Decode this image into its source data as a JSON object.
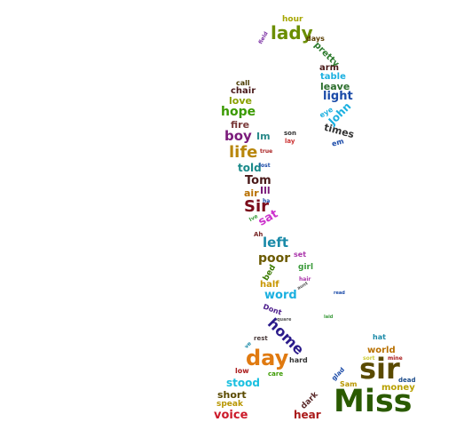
{
  "words": [
    {
      "id": "lady",
      "text": "lady",
      "color": "#6b8e00"
    },
    {
      "id": "hour",
      "text": "hour",
      "color": "#a6a600"
    },
    {
      "id": "days",
      "text": "days",
      "color": "#5a3d00"
    },
    {
      "id": "field",
      "text": "field",
      "color": "#7a2ea3"
    },
    {
      "id": "pretty",
      "text": "pretty",
      "color": "#2c7a2c"
    },
    {
      "id": "arm",
      "text": "arm",
      "color": "#4a1a1a"
    },
    {
      "id": "table",
      "text": "table",
      "color": "#1bb0e0"
    },
    {
      "id": "leave",
      "text": "leave",
      "color": "#2c6e2c"
    },
    {
      "id": "light",
      "text": "light",
      "color": "#1a4aa8"
    },
    {
      "id": "eye",
      "text": "eye",
      "color": "#1bb0e0"
    },
    {
      "id": "john",
      "text": "John",
      "color": "#1bb0e0"
    },
    {
      "id": "times",
      "text": "times",
      "color": "#333333"
    },
    {
      "id": "em",
      "text": "em",
      "color": "#1a4aa8"
    },
    {
      "id": "call",
      "text": "call",
      "color": "#4a3a00"
    },
    {
      "id": "chair",
      "text": "chair",
      "color": "#4a1a1a"
    },
    {
      "id": "love",
      "text": "love",
      "color": "#8aa000"
    },
    {
      "id": "hope",
      "text": "hope",
      "color": "#3a9a00"
    },
    {
      "id": "fire",
      "text": "fire",
      "color": "#7a3a3a"
    },
    {
      "id": "boy",
      "text": "boy",
      "color": "#7a1a7a"
    },
    {
      "id": "im",
      "text": "Im",
      "color": "#2a8a8a"
    },
    {
      "id": "son",
      "text": "son",
      "color": "#333333"
    },
    {
      "id": "lay",
      "text": "lay",
      "color": "#cc3333"
    },
    {
      "id": "life",
      "text": "life",
      "color": "#b8860b"
    },
    {
      "id": "true",
      "text": "true",
      "color": "#aa2222"
    },
    {
      "id": "told",
      "text": "told",
      "color": "#1a8a8a"
    },
    {
      "id": "lost",
      "text": "lost",
      "color": "#1a4aa8"
    },
    {
      "id": "tom",
      "text": "Tom",
      "color": "#4a1a1a"
    },
    {
      "id": "air",
      "text": "air",
      "color": "#b87000"
    },
    {
      "id": "ill",
      "text": "Ill",
      "color": "#7a1a7a"
    },
    {
      "id": "ha",
      "text": "ha",
      "color": "#1a4aa8"
    },
    {
      "id": "sir-caps",
      "text": "Sir",
      "color": "#7a0a1a"
    },
    {
      "id": "sat",
      "text": "sat",
      "color": "#cc33cc"
    },
    {
      "id": "ive",
      "text": "Ive",
      "color": "#3a9a3a"
    },
    {
      "id": "ah",
      "text": "Ah",
      "color": "#7a2a2a"
    },
    {
      "id": "left",
      "text": "left",
      "color": "#1a8aa8"
    },
    {
      "id": "set",
      "text": "set",
      "color": "#aa33aa"
    },
    {
      "id": "poor",
      "text": "poor",
      "color": "#6b5a00"
    },
    {
      "id": "bed",
      "text": "bed",
      "color": "#3a7a00"
    },
    {
      "id": "girl",
      "text": "girl",
      "color": "#3a9a3a"
    },
    {
      "id": "hair",
      "text": "hair",
      "color": "#aa33aa"
    },
    {
      "id": "half",
      "text": "half",
      "color": "#c89600"
    },
    {
      "id": "aunt",
      "text": "aunt",
      "color": "#555555"
    },
    {
      "id": "word",
      "text": "word",
      "color": "#1bb0e0"
    },
    {
      "id": "read",
      "text": "read",
      "color": "#1a4aa8"
    },
    {
      "id": "dont",
      "text": "Dont",
      "color": "#4a1a8a"
    },
    {
      "id": "square",
      "text": "square",
      "color": "#555555"
    },
    {
      "id": "laid",
      "text": "laid",
      "color": "#3a9a3a"
    },
    {
      "id": "home",
      "text": "home",
      "color": "#2a1a8a"
    },
    {
      "id": "rest",
      "text": "rest",
      "color": "#4a3a3a"
    },
    {
      "id": "ve",
      "text": "ve",
      "color": "#1a8aa8"
    },
    {
      "id": "day",
      "text": "day",
      "color": "#e07a10"
    },
    {
      "id": "hard",
      "text": "hard",
      "color": "#333333"
    },
    {
      "id": "hat",
      "text": "hat",
      "color": "#1a8aa8"
    },
    {
      "id": "world",
      "text": "world",
      "color": "#b87000"
    },
    {
      "id": "sort",
      "text": "sort",
      "color": "#cccc33"
    },
    {
      "id": "mine",
      "text": "mine",
      "color": "#aa1a1a"
    },
    {
      "id": "sir",
      "text": "sir",
      "color": "#5a4a00"
    },
    {
      "id": "dead",
      "text": "dead",
      "color": "#1a4a8a"
    },
    {
      "id": "low",
      "text": "low",
      "color": "#aa1a1a"
    },
    {
      "id": "care",
      "text": "care",
      "color": "#3a9a00"
    },
    {
      "id": "glad",
      "text": "glad",
      "color": "#1a4aa8"
    },
    {
      "id": "stood",
      "text": "stood",
      "color": "#1bc0e0"
    },
    {
      "id": "sam",
      "text": "Sam",
      "color": "#b89600"
    },
    {
      "id": "money",
      "text": "money",
      "color": "#b8a000"
    },
    {
      "id": "short",
      "text": "short",
      "color": "#5a4a00"
    },
    {
      "id": "dark",
      "text": "dark",
      "color": "#5a2a2a"
    },
    {
      "id": "miss",
      "text": "Miss",
      "color": "#2a5a00"
    },
    {
      "id": "speak",
      "text": "speak",
      "color": "#b89600"
    },
    {
      "id": "voice",
      "text": "voice",
      "color": "#cc1a2a"
    },
    {
      "id": "hear",
      "text": "hear",
      "color": "#aa1a1a"
    }
  ]
}
